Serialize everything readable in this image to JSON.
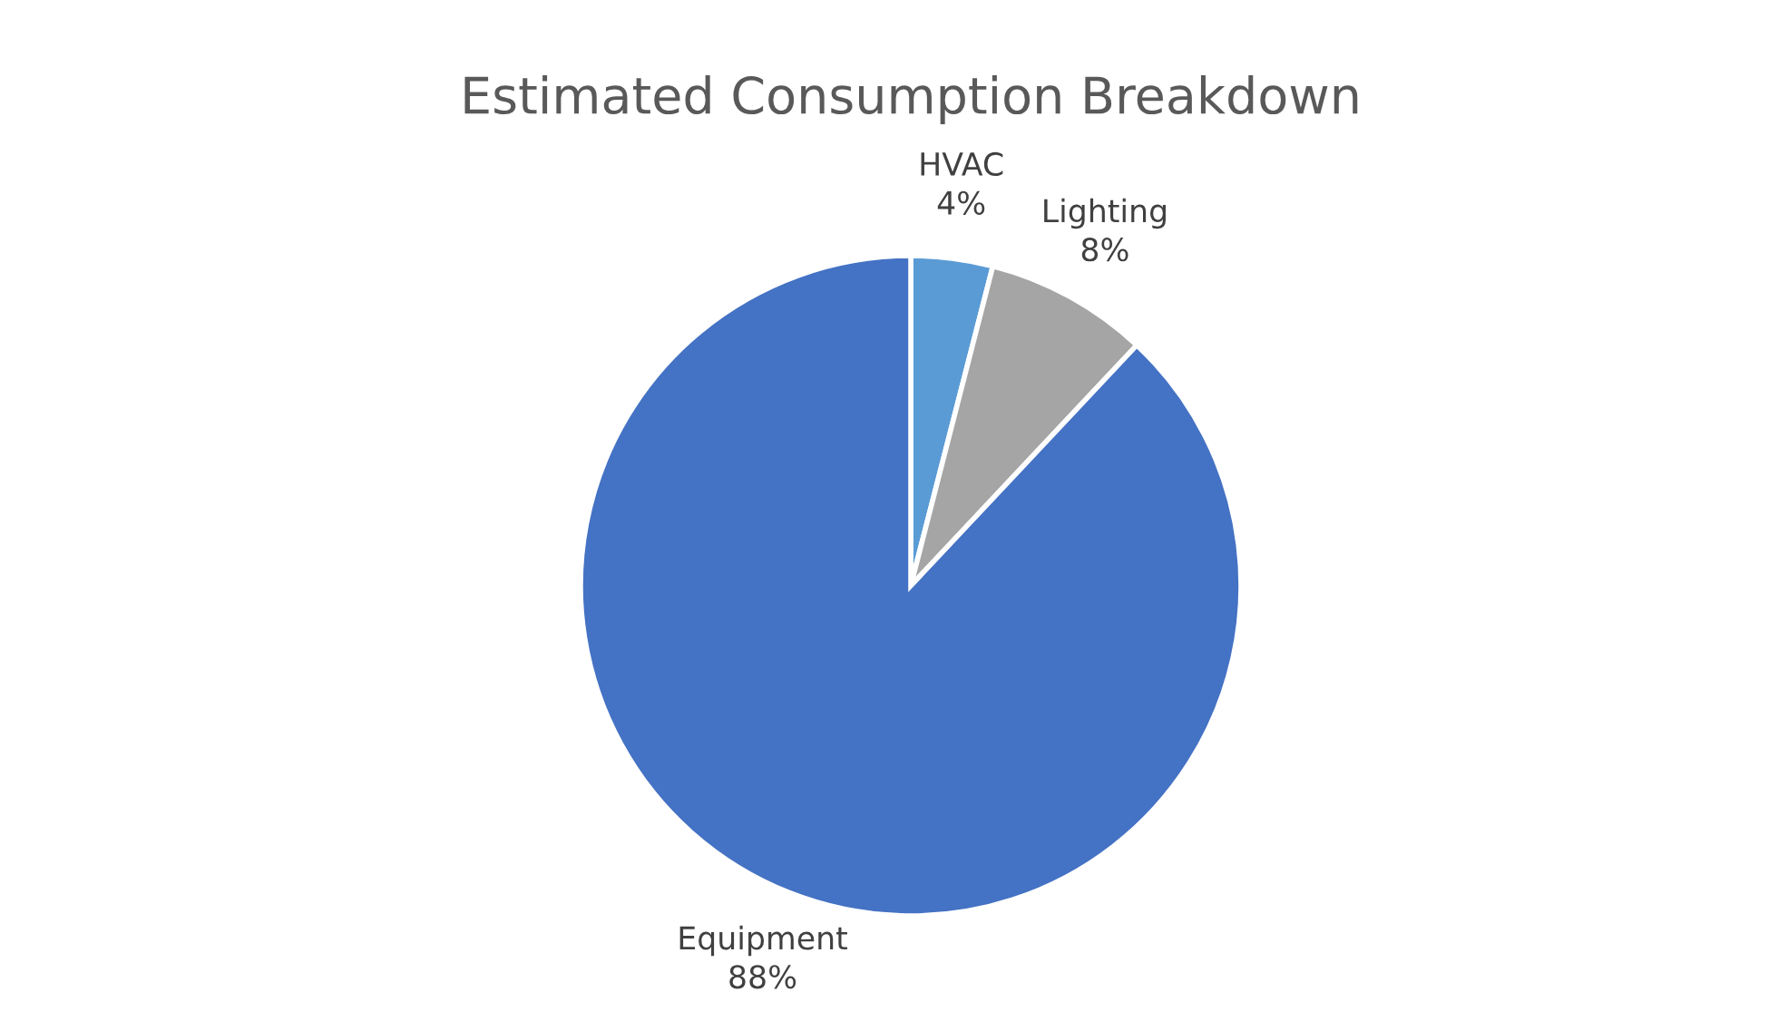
{
  "chart_data": {
    "type": "pie",
    "title": "Estimated Consumption Breakdown",
    "categories": [
      "HVAC",
      "Lighting",
      "Equipment"
    ],
    "values": [
      4,
      8,
      88
    ],
    "value_labels": [
      "4%",
      "8%",
      "88%"
    ],
    "colors": [
      "#5b9bd5",
      "#a5a5a5",
      "#4472c4"
    ],
    "legend": false
  }
}
